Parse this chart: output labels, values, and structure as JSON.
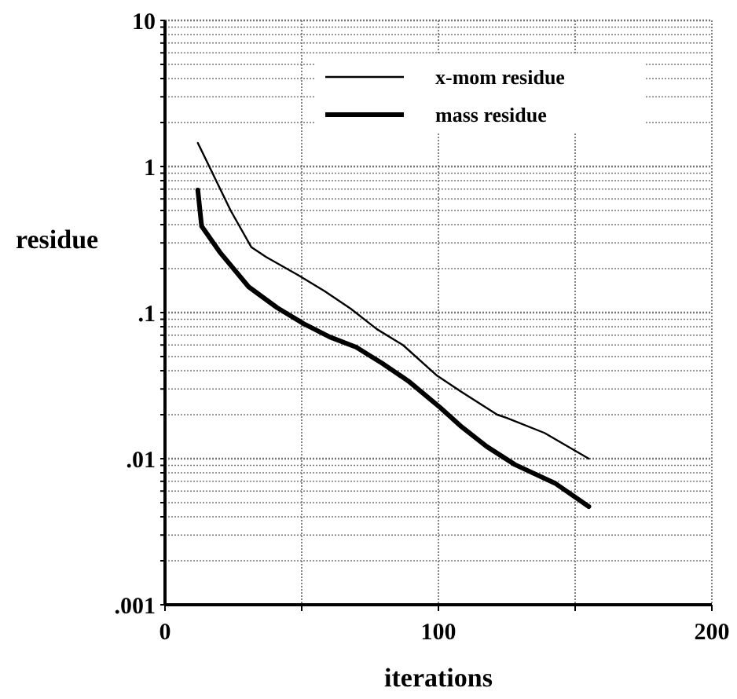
{
  "chart_data": {
    "type": "line",
    "xlabel": "iterations",
    "ylabel": "residue",
    "log": "y",
    "grid": true,
    "legend": "top right",
    "line_style": "solid",
    "xlim": [
      0,
      200
    ],
    "ylim": [
      0.001,
      10
    ],
    "xticks": [
      0,
      {
        "value": 50,
        "label": null
      },
      100,
      {
        "value": 150,
        "label": null
      },
      200
    ],
    "yticks": [
      {
        "value": 0.001,
        "label": ".001"
      },
      {
        "value": 0.002,
        "label": null
      },
      {
        "value": 0.003,
        "label": null
      },
      {
        "value": 0.004,
        "label": null
      },
      {
        "value": 0.005,
        "label": null
      },
      {
        "value": 0.006,
        "label": null
      },
      {
        "value": 0.007,
        "label": null
      },
      {
        "value": 0.008,
        "label": null
      },
      {
        "value": 0.009,
        "label": null
      },
      {
        "value": 0.01,
        "label": ".01"
      },
      {
        "value": 0.02,
        "label": null
      },
      {
        "value": 0.03,
        "label": null
      },
      {
        "value": 0.04,
        "label": null
      },
      {
        "value": 0.05,
        "label": null
      },
      {
        "value": 0.06,
        "label": null
      },
      {
        "value": 0.07,
        "label": null
      },
      {
        "value": 0.08,
        "label": null
      },
      {
        "value": 0.09,
        "label": null
      },
      {
        "value": 0.1,
        "label": ".1"
      },
      {
        "value": 0.2,
        "label": null
      },
      {
        "value": 0.3,
        "label": null
      },
      {
        "value": 0.4,
        "label": null
      },
      {
        "value": 0.5,
        "label": null
      },
      {
        "value": 0.6,
        "label": null
      },
      {
        "value": 0.7,
        "label": null
      },
      {
        "value": 0.8,
        "label": null
      },
      {
        "value": 0.9,
        "label": null
      },
      1,
      {
        "value": 2,
        "label": null
      },
      {
        "value": 3,
        "label": null
      },
      {
        "value": 4,
        "label": null
      },
      {
        "value": 5,
        "label": null
      },
      {
        "value": 6,
        "label": null
      },
      {
        "value": 7,
        "label": null
      },
      {
        "value": 8,
        "label": null
      },
      {
        "value": 9,
        "label": null
      },
      10
    ],
    "series": [
      {
        "name": "x-mom residue",
        "color": "#000000",
        "x": [
          12,
          24,
          31.6,
          37,
          48.8,
          58.4,
          68,
          77.5,
          87,
          99.5,
          108,
          121.5,
          125,
          138.8,
          155
        ],
        "values": [
          1.45,
          0.5,
          0.28,
          0.24,
          0.18,
          0.14,
          0.106,
          0.077,
          0.06,
          0.037,
          0.029,
          0.02,
          0.019,
          0.015,
          0.01
        ]
      },
      {
        "name": "mass residue",
        "color": "#000000",
        "x": [
          12,
          13.4,
          20,
          30.6,
          41,
          50.7,
          60.3,
          69.9,
          79.4,
          89,
          100.5,
          108,
          117.7,
          128,
          142.6,
          155
        ],
        "values": [
          0.69,
          0.39,
          0.26,
          0.15,
          0.108,
          0.084,
          0.068,
          0.058,
          0.045,
          0.034,
          0.0225,
          0.0168,
          0.0121,
          0.0091,
          0.0068,
          0.0047
        ]
      }
    ]
  }
}
